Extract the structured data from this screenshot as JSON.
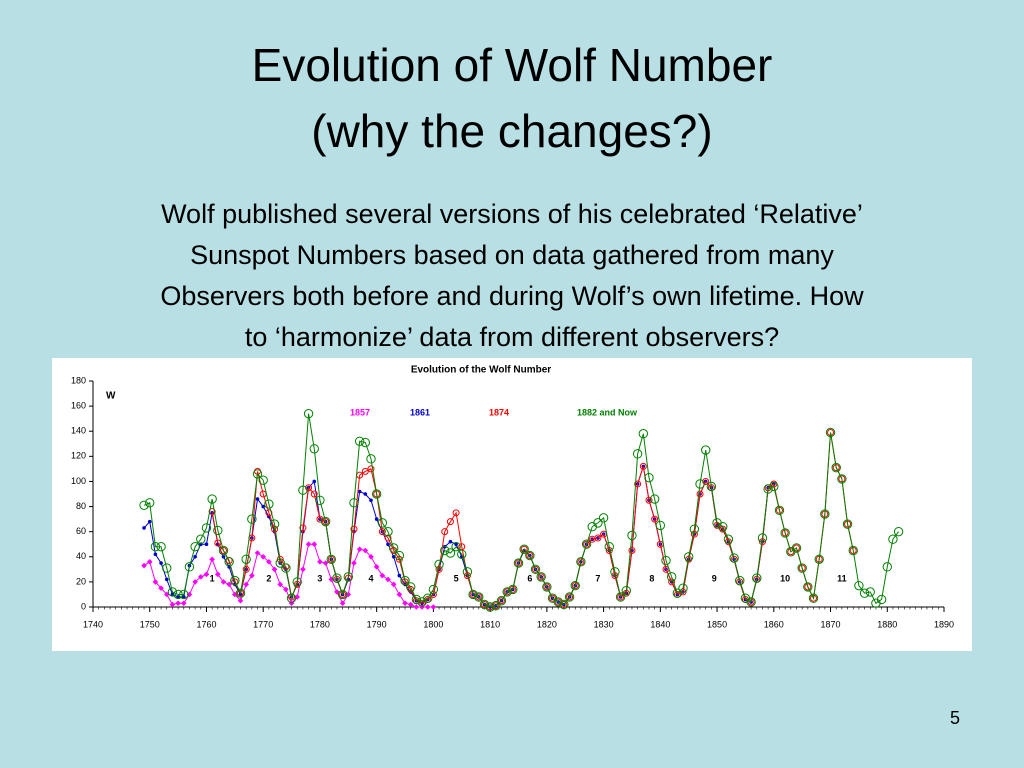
{
  "title": [
    "Evolution of Wolf Number",
    "(why the changes?)"
  ],
  "body": [
    "Wolf published several versions of his celebrated ‘Relative’",
    "Sunspot Numbers based on data gathered from many",
    "Observers both before and during Wolf’s own lifetime. How",
    "to ‘harmonize’ data from different observers?"
  ],
  "page_number": "5",
  "chart_data": {
    "type": "line",
    "title": "Evolution of the Wolf Number",
    "y_label": "W",
    "xlim": [
      1740,
      1890
    ],
    "xticks": [
      1740,
      1750,
      1760,
      1770,
      1780,
      1790,
      1800,
      1810,
      1820,
      1830,
      1840,
      1850,
      1860,
      1870,
      1880,
      1890
    ],
    "ylim": [
      0,
      180
    ],
    "yticks": [
      0,
      20,
      40,
      60,
      80,
      100,
      120,
      140,
      160,
      180
    ],
    "x": [
      1749,
      1750,
      1751,
      1752,
      1753,
      1754,
      1755,
      1756,
      1757,
      1758,
      1759,
      1760,
      1761,
      1762,
      1763,
      1764,
      1765,
      1766,
      1767,
      1768,
      1769,
      1770,
      1771,
      1772,
      1773,
      1774,
      1775,
      1776,
      1777,
      1778,
      1779,
      1780,
      1781,
      1782,
      1783,
      1784,
      1785,
      1786,
      1787,
      1788,
      1789,
      1790,
      1791,
      1792,
      1793,
      1794,
      1795,
      1796,
      1797,
      1798,
      1799,
      1800,
      1801,
      1802,
      1803,
      1804,
      1805,
      1806,
      1807,
      1808,
      1809,
      1810,
      1811,
      1812,
      1813,
      1814,
      1815,
      1816,
      1817,
      1818,
      1819,
      1820,
      1821,
      1822,
      1823,
      1824,
      1825,
      1826,
      1827,
      1828,
      1829,
      1830,
      1831,
      1832,
      1833,
      1834,
      1835,
      1836,
      1837,
      1838,
      1839,
      1840,
      1841,
      1842,
      1843,
      1844,
      1845,
      1846,
      1847,
      1848,
      1849,
      1850,
      1851,
      1852,
      1853,
      1854,
      1855,
      1856,
      1857,
      1858,
      1859,
      1860,
      1861,
      1862,
      1863,
      1864,
      1865,
      1866,
      1867,
      1868,
      1869,
      1870,
      1871,
      1872,
      1873,
      1874,
      1875,
      1876,
      1877,
      1878,
      1879,
      1880,
      1881,
      1882
    ],
    "series": [
      {
        "name": "1857",
        "color": "#ff00ff",
        "marker": "diamond",
        "values": [
          33,
          36,
          20,
          15,
          10,
          2,
          3,
          3,
          10,
          20,
          24,
          26,
          38,
          26,
          20,
          18,
          10,
          5,
          18,
          25,
          43,
          40,
          36,
          30,
          18,
          14,
          3,
          8,
          30,
          50,
          50,
          36,
          35,
          22,
          12,
          3,
          10,
          35,
          46,
          45,
          40,
          32,
          25,
          22,
          18,
          10,
          3,
          2,
          0,
          0,
          0,
          0,
          null,
          null,
          null,
          null,
          null,
          null,
          null,
          null,
          null,
          null,
          null,
          null,
          null,
          null,
          null,
          null,
          null,
          null,
          null,
          null,
          null,
          null,
          null,
          null,
          null,
          null,
          null,
          null,
          null,
          null,
          null,
          null,
          null,
          null,
          null,
          null,
          null,
          null,
          null,
          null,
          null,
          null,
          null,
          null,
          null,
          null,
          null,
          null,
          null,
          null,
          null,
          null,
          null,
          null,
          null,
          null,
          null,
          null,
          null,
          null,
          null,
          null,
          null,
          null,
          null,
          null,
          null,
          null,
          null,
          null,
          null,
          null,
          null,
          null,
          null,
          null,
          null,
          null,
          null,
          null,
          null,
          null
        ]
      },
      {
        "name": "1861",
        "color": "#0000cc",
        "marker": "dot",
        "values": [
          63,
          68,
          42,
          35,
          22,
          10,
          8,
          8,
          33,
          40,
          50,
          50,
          75,
          50,
          40,
          32,
          18,
          10,
          30,
          55,
          86,
          80,
          72,
          60,
          35,
          30,
          8,
          18,
          60,
          95,
          100,
          70,
          68,
          38,
          22,
          10,
          22,
          60,
          92,
          90,
          85,
          70,
          60,
          50,
          40,
          25,
          18,
          12,
          5,
          3,
          6,
          10,
          30,
          48,
          52,
          50,
          40,
          25,
          10,
          8,
          2,
          0,
          1,
          5,
          12,
          14,
          35,
          45,
          41,
          30,
          24,
          16,
          7,
          4,
          2,
          8,
          17,
          36,
          50,
          54,
          55,
          58,
          45,
          25,
          8,
          11,
          45,
          98,
          112,
          85,
          70,
          50,
          30,
          20,
          10,
          12,
          38,
          58,
          90,
          100,
          95,
          65,
          62,
          52,
          38,
          20,
          6,
          4,
          22,
          52,
          95,
          98,
          null,
          null,
          null,
          null,
          null,
          null,
          null,
          null,
          null,
          null,
          null,
          null,
          null,
          null,
          null,
          null,
          null,
          null,
          null,
          null,
          null,
          null
        ]
      },
      {
        "name": "1874",
        "color": "#ff0000",
        "marker": "circle",
        "values": [
          null,
          null,
          null,
          null,
          null,
          null,
          null,
          null,
          null,
          null,
          null,
          null,
          76,
          51,
          45,
          37,
          20,
          11,
          30,
          55,
          108,
          90,
          75,
          62,
          38,
          32,
          8,
          18,
          63,
          95,
          90,
          70,
          68,
          38,
          22,
          10,
          23,
          62,
          105,
          108,
          110,
          90,
          60,
          55,
          45,
          38,
          20,
          14,
          5,
          3,
          6,
          10,
          30,
          60,
          68,
          75,
          48,
          25,
          10,
          8,
          2,
          0,
          1,
          5,
          12,
          14,
          35,
          46,
          41,
          30,
          24,
          16,
          7,
          4,
          2,
          8,
          17,
          36,
          50,
          54,
          55,
          58,
          45,
          25,
          8,
          11,
          45,
          98,
          112,
          85,
          70,
          50,
          30,
          20,
          10,
          12,
          38,
          58,
          90,
          100,
          95,
          65,
          62,
          52,
          38,
          20,
          6,
          4,
          22,
          52,
          95,
          98,
          77,
          59,
          44,
          47,
          31,
          16,
          7,
          38,
          74,
          139,
          111,
          102,
          66,
          45,
          null,
          null,
          null,
          null,
          null,
          null,
          null,
          null
        ]
      },
      {
        "name": "1882 and Now",
        "color": "#008000",
        "marker": "ring",
        "values": [
          81,
          83,
          48,
          48,
          31,
          12,
          10,
          10,
          32,
          48,
          54,
          63,
          86,
          61,
          45,
          36,
          21,
          11,
          38,
          70,
          106,
          101,
          82,
          66,
          35,
          31,
          7,
          20,
          93,
          154,
          126,
          85,
          68,
          38,
          23,
          10,
          24,
          83,
          132,
          131,
          118,
          90,
          67,
          60,
          47,
          41,
          21,
          16,
          6,
          4,
          7,
          14,
          34,
          45,
          43,
          48,
          42,
          28,
          10,
          8,
          2,
          0,
          1,
          5,
          12,
          14,
          35,
          46,
          41,
          30,
          24,
          16,
          7,
          4,
          2,
          8,
          17,
          36,
          50,
          64,
          67,
          71,
          48,
          28,
          8,
          13,
          57,
          122,
          138,
          103,
          86,
          65,
          37,
          24,
          11,
          15,
          40,
          62,
          98,
          125,
          96,
          67,
          64,
          54,
          39,
          21,
          7,
          4,
          23,
          55,
          94,
          96,
          77,
          59,
          44,
          47,
          31,
          16,
          7,
          38,
          74,
          139,
          111,
          102,
          66,
          45,
          17,
          11,
          12,
          3,
          6,
          32,
          54,
          60
        ]
      }
    ],
    "annotations": [
      {
        "text": "1",
        "x": 1761
      },
      {
        "text": "2",
        "x": 1771
      },
      {
        "text": "3",
        "x": 1780
      },
      {
        "text": "4",
        "x": 1789
      },
      {
        "text": "5",
        "x": 1804
      },
      {
        "text": "6",
        "x": 1817
      },
      {
        "text": "7",
        "x": 1829
      },
      {
        "text": "8",
        "x": 1838.5
      },
      {
        "text": "9",
        "x": 1849.5
      },
      {
        "text": "10",
        "x": 1862
      },
      {
        "text": "11",
        "x": 1872
      }
    ]
  }
}
